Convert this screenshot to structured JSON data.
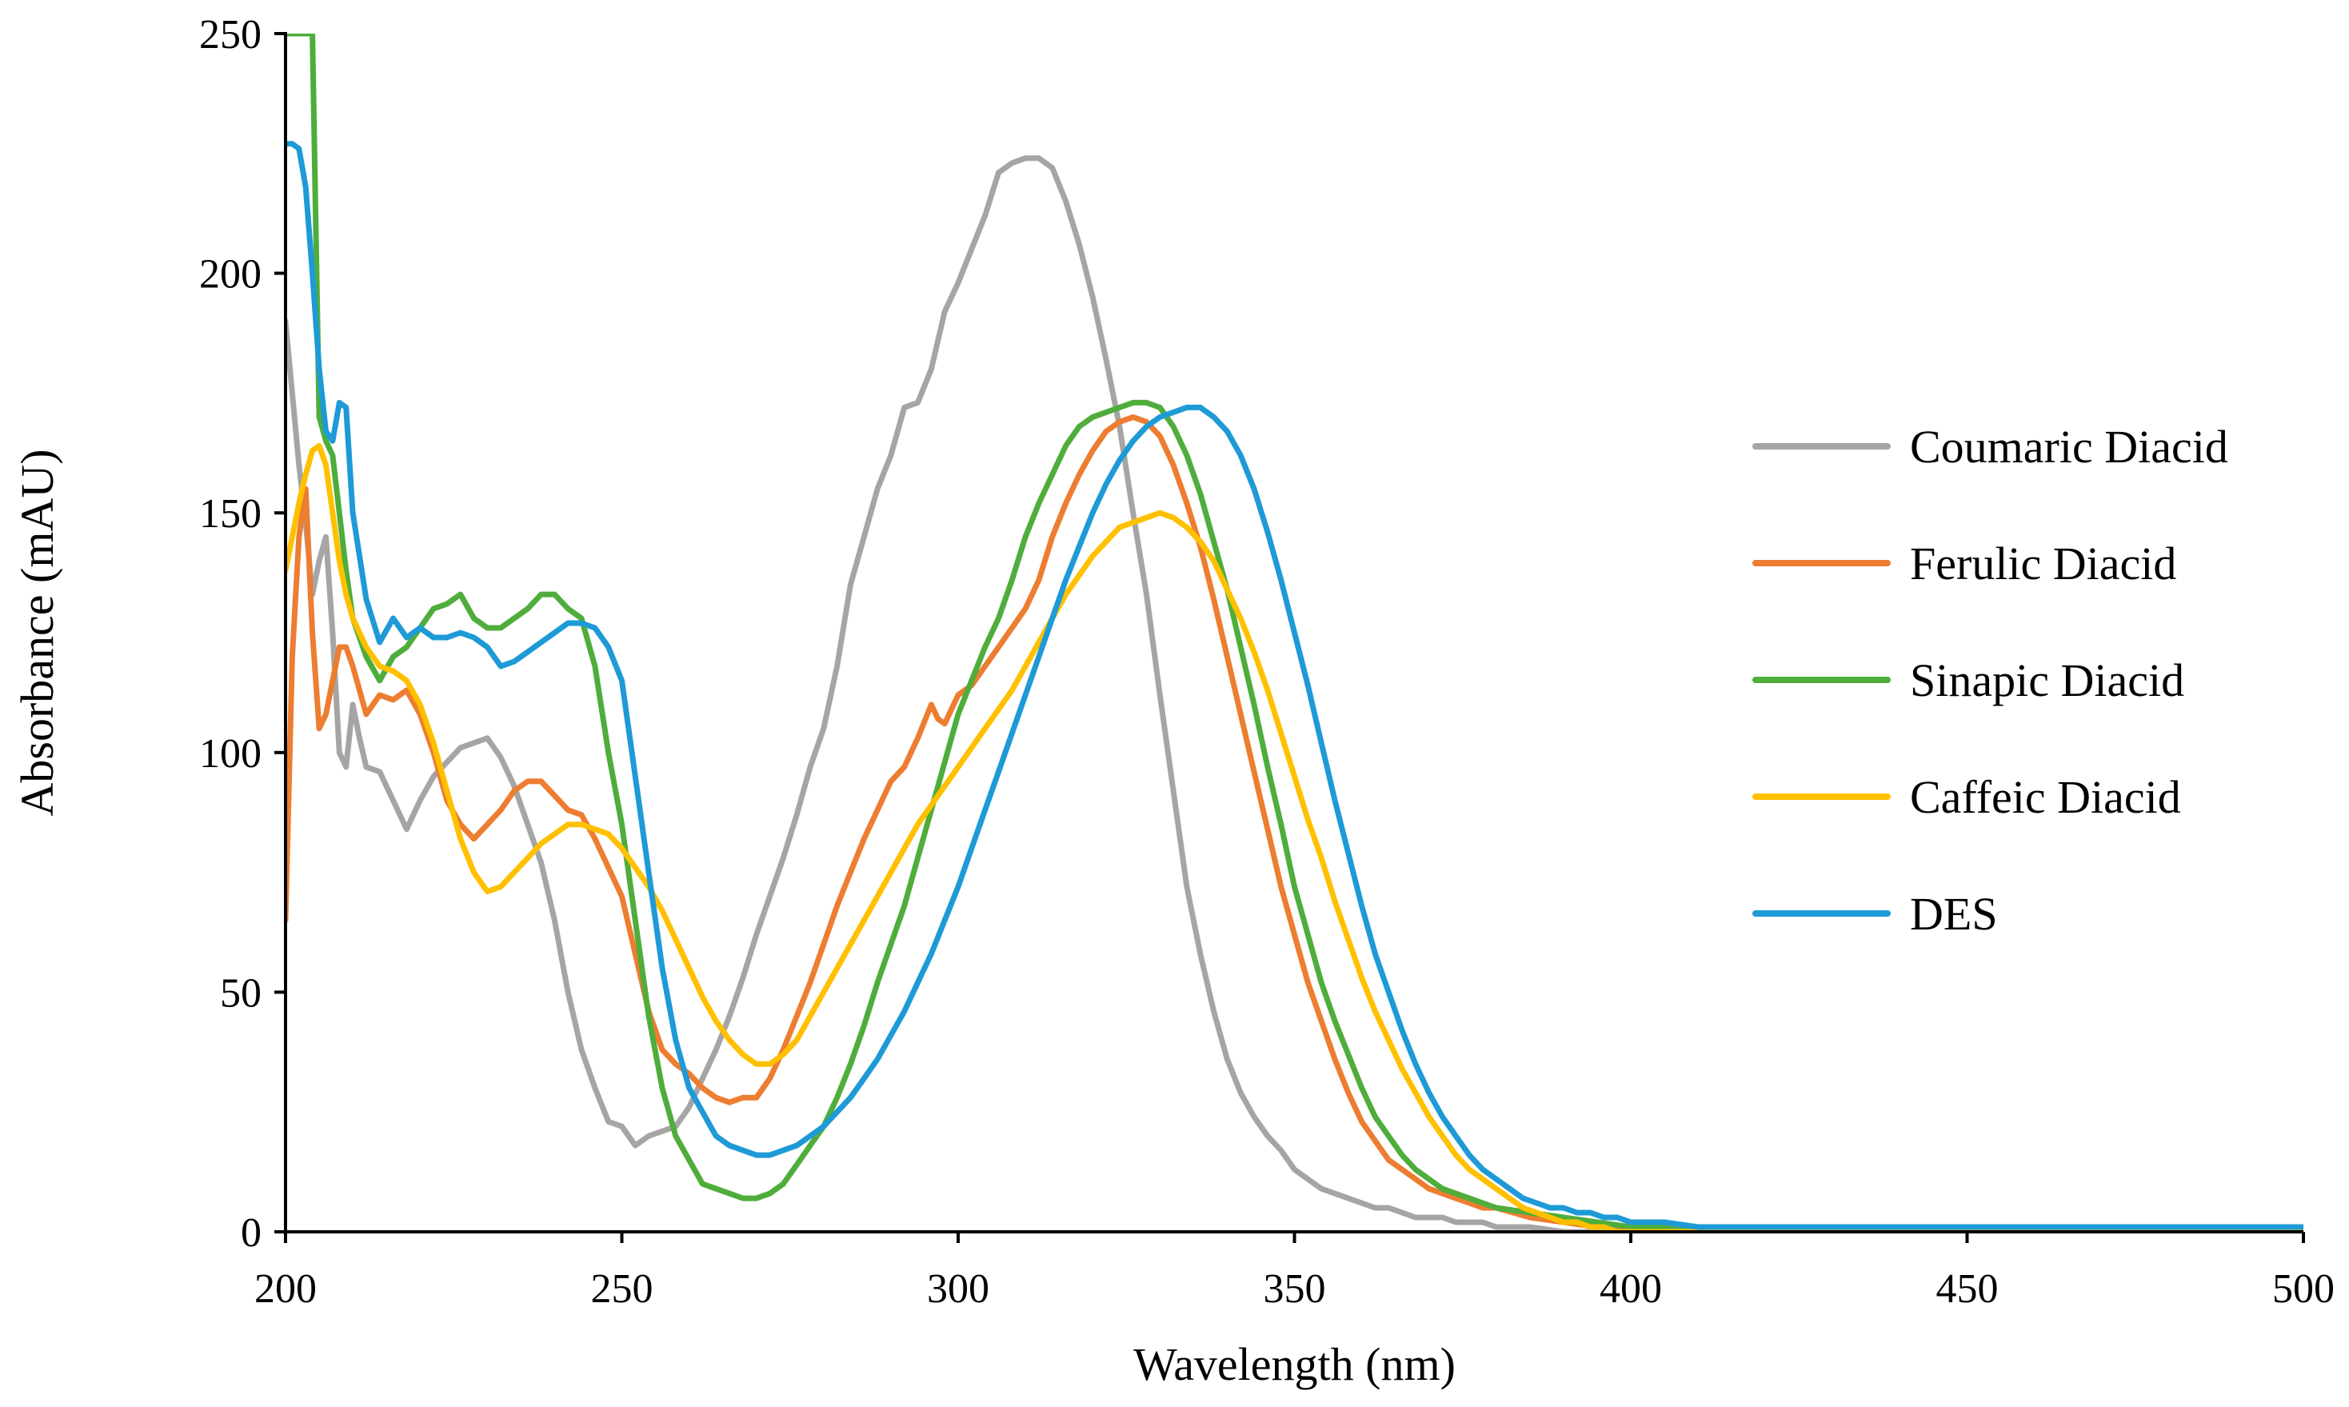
{
  "chart_data": {
    "type": "line",
    "title": "",
    "xlabel": "Wavelength (nm)",
    "ylabel": "Absorbance (mAU)",
    "xlim": [
      200,
      500
    ],
    "ylim": [
      0,
      250
    ],
    "xticks": [
      200,
      250,
      300,
      350,
      400,
      450,
      500
    ],
    "yticks": [
      0,
      50,
      100,
      150,
      200,
      250
    ],
    "grid": false,
    "legend_position": "right",
    "series": [
      {
        "name": "Coumaric Diacid",
        "color": "#A5A5A5",
        "x": [
          200,
          201,
          202,
          203,
          204,
          205,
          206,
          207,
          208,
          209,
          210,
          211,
          212,
          214,
          216,
          218,
          220,
          222,
          224,
          226,
          228,
          230,
          232,
          234,
          236,
          238,
          240,
          242,
          244,
          246,
          248,
          250,
          252,
          254,
          256,
          258,
          260,
          262,
          264,
          266,
          268,
          270,
          272,
          274,
          276,
          278,
          280,
          282,
          284,
          286,
          288,
          290,
          292,
          294,
          296,
          298,
          300,
          302,
          304,
          306,
          308,
          310,
          312,
          314,
          316,
          318,
          320,
          322,
          324,
          326,
          328,
          330,
          332,
          334,
          336,
          338,
          340,
          342,
          344,
          346,
          348,
          350,
          352,
          354,
          356,
          358,
          360,
          362,
          364,
          366,
          368,
          370,
          372,
          374,
          376,
          378,
          380,
          385,
          390,
          395,
          400,
          410,
          420,
          430,
          440,
          450,
          460,
          470,
          480,
          490,
          500
        ],
        "y": [
          190,
          175,
          160,
          148,
          133,
          140,
          145,
          125,
          100,
          97,
          110,
          103,
          97,
          96,
          90,
          84,
          90,
          95,
          98,
          101,
          102,
          103,
          99,
          93,
          85,
          77,
          65,
          50,
          38,
          30,
          23,
          22,
          18,
          20,
          21,
          22,
          26,
          32,
          38,
          45,
          53,
          62,
          70,
          78,
          87,
          97,
          105,
          118,
          135,
          145,
          155,
          162,
          172,
          173,
          180,
          192,
          198,
          205,
          212,
          221,
          223,
          224,
          224,
          222,
          215,
          206,
          195,
          182,
          168,
          150,
          133,
          112,
          92,
          72,
          58,
          46,
          36,
          29,
          24,
          20,
          17,
          13,
          11,
          9,
          8,
          7,
          6,
          5,
          5,
          4,
          3,
          3,
          3,
          2,
          2,
          2,
          1,
          1,
          0,
          0,
          0,
          0,
          0,
          0,
          0,
          0,
          0,
          0,
          0,
          0,
          0
        ]
      },
      {
        "name": "Ferulic Diacid",
        "color": "#ED7D31",
        "x": [
          200,
          201,
          202,
          203,
          204,
          205,
          206,
          207,
          208,
          209,
          210,
          212,
          214,
          216,
          218,
          220,
          222,
          224,
          226,
          228,
          230,
          232,
          234,
          236,
          238,
          240,
          242,
          244,
          246,
          248,
          250,
          252,
          254,
          256,
          258,
          260,
          262,
          264,
          266,
          268,
          270,
          272,
          274,
          276,
          278,
          280,
          282,
          284,
          286,
          288,
          290,
          292,
          294,
          296,
          297,
          298,
          300,
          302,
          304,
          306,
          308,
          310,
          312,
          314,
          316,
          318,
          320,
          322,
          324,
          326,
          328,
          330,
          332,
          334,
          336,
          338,
          340,
          342,
          344,
          346,
          348,
          350,
          352,
          354,
          356,
          358,
          360,
          362,
          364,
          366,
          368,
          370,
          372,
          374,
          376,
          378,
          380,
          385,
          390,
          395,
          400,
          410,
          420,
          430,
          440,
          450,
          460,
          470,
          480,
          490,
          500
        ],
        "y": [
          65,
          120,
          145,
          155,
          125,
          105,
          108,
          115,
          122,
          122,
          118,
          108,
          112,
          111,
          113,
          108,
          100,
          90,
          85,
          82,
          85,
          88,
          92,
          94,
          94,
          91,
          88,
          87,
          82,
          76,
          70,
          58,
          46,
          38,
          35,
          33,
          30,
          28,
          27,
          28,
          28,
          32,
          38,
          45,
          52,
          60,
          68,
          75,
          82,
          88,
          94,
          97,
          103,
          110,
          107,
          106,
          112,
          114,
          118,
          122,
          126,
          130,
          136,
          145,
          152,
          158,
          163,
          167,
          169,
          170,
          169,
          166,
          160,
          152,
          143,
          132,
          120,
          108,
          96,
          84,
          72,
          62,
          52,
          44,
          36,
          29,
          23,
          19,
          15,
          13,
          11,
          9,
          8,
          7,
          6,
          5,
          5,
          3,
          2,
          1,
          1,
          0,
          0,
          0,
          0,
          0,
          0,
          0,
          0,
          0,
          0
        ]
      },
      {
        "name": "Sinapic Diacid",
        "color": "#4FAD3B",
        "x": [
          200,
          201,
          202,
          203,
          204,
          205,
          206,
          207,
          208,
          209,
          210,
          212,
          214,
          216,
          218,
          220,
          222,
          224,
          226,
          228,
          230,
          232,
          234,
          236,
          238,
          240,
          242,
          244,
          246,
          248,
          250,
          252,
          254,
          256,
          258,
          260,
          262,
          264,
          266,
          268,
          270,
          272,
          274,
          276,
          278,
          280,
          282,
          284,
          286,
          288,
          290,
          292,
          294,
          296,
          298,
          300,
          302,
          304,
          306,
          308,
          310,
          312,
          314,
          316,
          318,
          320,
          322,
          324,
          326,
          328,
          330,
          332,
          334,
          336,
          338,
          340,
          342,
          344,
          346,
          348,
          350,
          352,
          354,
          356,
          358,
          360,
          362,
          364,
          366,
          368,
          370,
          372,
          374,
          376,
          378,
          380,
          385,
          390,
          395,
          400,
          410,
          420,
          430,
          440,
          450,
          460,
          470,
          480,
          490,
          500
        ],
        "y": [
          250,
          250,
          250,
          250,
          250,
          170,
          165,
          162,
          150,
          138,
          128,
          120,
          115,
          120,
          122,
          126,
          130,
          131,
          133,
          128,
          126,
          126,
          128,
          130,
          133,
          133,
          130,
          128,
          118,
          100,
          85,
          65,
          45,
          30,
          20,
          15,
          10,
          9,
          8,
          7,
          7,
          8,
          10,
          14,
          18,
          22,
          28,
          35,
          43,
          52,
          60,
          68,
          78,
          88,
          98,
          108,
          115,
          122,
          128,
          136,
          145,
          152,
          158,
          164,
          168,
          170,
          171,
          172,
          173,
          173,
          172,
          168,
          162,
          154,
          144,
          134,
          122,
          110,
          97,
          85,
          72,
          62,
          52,
          44,
          37,
          30,
          24,
          20,
          16,
          13,
          11,
          9,
          8,
          7,
          6,
          5,
          4,
          3,
          2,
          1,
          1,
          0,
          0,
          0,
          0,
          0,
          0,
          0,
          0,
          0
        ]
      },
      {
        "name": "Caffeic Diacid",
        "color": "#FFC000",
        "x": [
          200,
          201,
          202,
          203,
          204,
          205,
          206,
          207,
          208,
          209,
          210,
          212,
          214,
          216,
          218,
          220,
          222,
          224,
          226,
          228,
          230,
          232,
          234,
          236,
          238,
          240,
          242,
          244,
          246,
          248,
          250,
          252,
          254,
          256,
          258,
          260,
          262,
          264,
          266,
          268,
          270,
          272,
          274,
          276,
          278,
          280,
          282,
          284,
          286,
          288,
          290,
          292,
          294,
          296,
          298,
          300,
          302,
          304,
          306,
          308,
          310,
          312,
          314,
          316,
          318,
          320,
          322,
          324,
          326,
          328,
          330,
          332,
          334,
          336,
          338,
          340,
          342,
          344,
          346,
          348,
          350,
          352,
          354,
          356,
          358,
          360,
          362,
          364,
          366,
          368,
          370,
          372,
          374,
          376,
          378,
          380,
          382,
          384,
          386,
          388,
          390,
          392,
          394,
          396,
          398,
          400,
          405,
          410,
          420,
          430,
          440,
          450,
          460,
          470,
          480,
          490,
          500
        ],
        "y": [
          138,
          145,
          152,
          158,
          163,
          164,
          160,
          150,
          140,
          133,
          128,
          122,
          118,
          117,
          115,
          110,
          102,
          92,
          82,
          75,
          71,
          72,
          75,
          78,
          81,
          83,
          85,
          85,
          84,
          83,
          80,
          76,
          72,
          67,
          61,
          55,
          49,
          44,
          40,
          37,
          35,
          35,
          37,
          40,
          45,
          50,
          55,
          60,
          65,
          70,
          75,
          80,
          85,
          89,
          93,
          97,
          101,
          105,
          109,
          113,
          118,
          123,
          128,
          133,
          137,
          141,
          144,
          147,
          148,
          149,
          150,
          149,
          147,
          144,
          140,
          134,
          128,
          121,
          113,
          104,
          95,
          86,
          78,
          69,
          61,
          53,
          46,
          40,
          34,
          29,
          24,
          20,
          16,
          13,
          11,
          9,
          7,
          5,
          4,
          3,
          2,
          2,
          1,
          1,
          0,
          0,
          0,
          0,
          0,
          0,
          0,
          0,
          0,
          0,
          0,
          0,
          0
        ]
      },
      {
        "name": "DES",
        "color": "#1E9AD6",
        "x": [
          200,
          201,
          202,
          203,
          204,
          205,
          206,
          207,
          208,
          209,
          210,
          212,
          214,
          216,
          218,
          220,
          222,
          224,
          226,
          228,
          230,
          232,
          234,
          236,
          238,
          240,
          242,
          244,
          246,
          248,
          250,
          252,
          254,
          256,
          258,
          260,
          262,
          264,
          266,
          268,
          270,
          272,
          274,
          276,
          278,
          280,
          282,
          284,
          286,
          288,
          290,
          292,
          294,
          296,
          298,
          300,
          302,
          304,
          306,
          308,
          310,
          312,
          314,
          316,
          318,
          320,
          322,
          324,
          326,
          328,
          330,
          332,
          334,
          336,
          338,
          340,
          342,
          344,
          346,
          348,
          350,
          352,
          354,
          356,
          358,
          360,
          362,
          364,
          366,
          368,
          370,
          372,
          374,
          376,
          378,
          380,
          382,
          384,
          386,
          388,
          390,
          392,
          394,
          396,
          398,
          400,
          405,
          410,
          420,
          430,
          440,
          450,
          460,
          470,
          480,
          490,
          500
        ],
        "y": [
          227,
          227,
          226,
          218,
          200,
          180,
          167,
          165,
          173,
          172,
          150,
          132,
          123,
          128,
          124,
          126,
          124,
          124,
          125,
          124,
          122,
          118,
          119,
          121,
          123,
          125,
          127,
          127,
          126,
          122,
          115,
          95,
          75,
          55,
          40,
          30,
          25,
          20,
          18,
          17,
          16,
          16,
          17,
          18,
          20,
          22,
          25,
          28,
          32,
          36,
          41,
          46,
          52,
          58,
          65,
          72,
          80,
          88,
          96,
          104,
          112,
          120,
          128,
          136,
          143,
          150,
          156,
          161,
          165,
          168,
          170,
          171,
          172,
          172,
          170,
          167,
          162,
          155,
          146,
          136,
          125,
          114,
          102,
          90,
          79,
          68,
          58,
          50,
          42,
          35,
          29,
          24,
          20,
          16,
          13,
          11,
          9,
          7,
          6,
          5,
          5,
          4,
          4,
          3,
          3,
          2,
          2,
          1,
          1,
          1,
          1,
          1,
          1,
          1,
          1,
          1,
          1
        ]
      }
    ]
  }
}
